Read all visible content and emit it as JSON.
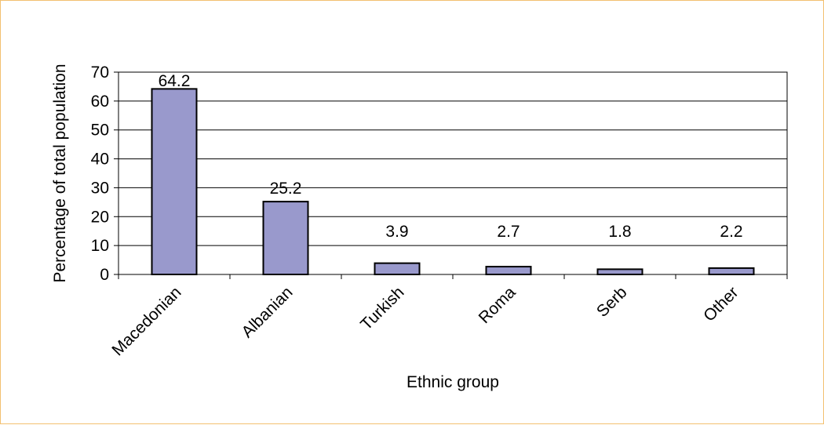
{
  "chart_data": {
    "type": "bar",
    "title": "",
    "xlabel": "Ethnic group",
    "ylabel": "Percentage of total population",
    "categories": [
      "Macedonian",
      "Albanian",
      "Turkish",
      "Roma",
      "Serb",
      "Other"
    ],
    "values": [
      64.2,
      25.2,
      3.9,
      2.7,
      1.8,
      2.2
    ],
    "data_labels": [
      "64.2",
      "25.2",
      "3.9",
      "2.7",
      "1.8",
      "2.2"
    ],
    "ylim": [
      0,
      70
    ],
    "yticks": [
      0,
      10,
      20,
      30,
      40,
      50,
      60,
      70
    ],
    "grid": true,
    "legend": "none",
    "colors": {
      "bar_fill": "#9999cc",
      "bar_stroke": "#000000",
      "frame_border": "#f3c070",
      "gridline": "#000000"
    }
  }
}
